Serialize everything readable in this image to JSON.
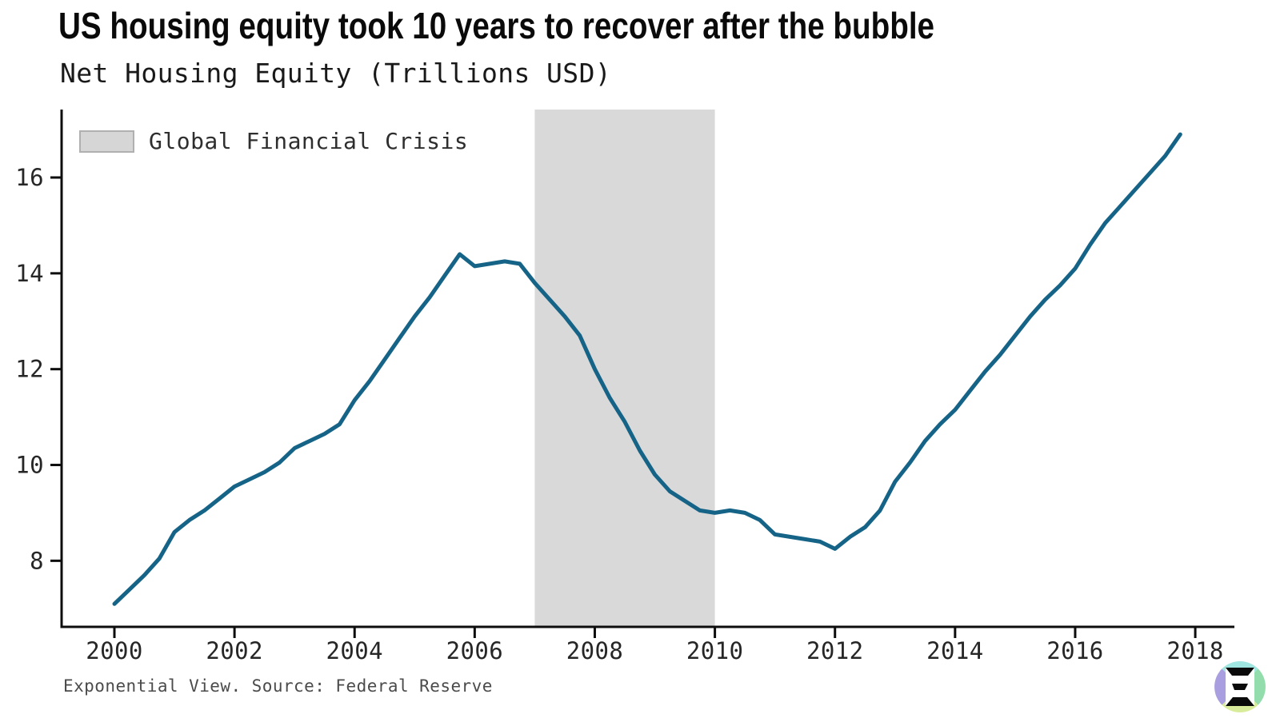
{
  "page": {
    "title": "US housing equity took 10 years to recover after the bubble",
    "subtitle": "Net Housing Equity (Trillions USD)",
    "footer": "Exponential View. Source: Federal Reserve"
  },
  "legend": {
    "label": "Global Financial Crisis",
    "swatch_color": "#d6d6d6"
  },
  "logo": {
    "name": "exponential-view-logo",
    "segment_colors": {
      "top": "#9fe5e0",
      "right": "#93dcab",
      "bottom": "#d9ec9c",
      "left": "#a99fe0"
    },
    "glyph": "three-bar-xi-monogram"
  },
  "chart_data": {
    "type": "line",
    "title": "US housing equity took 10 years to recover after the bubble",
    "subtitle": "Net Housing Equity (Trillions USD)",
    "xlabel": "",
    "ylabel": "Trillions USD",
    "grid": false,
    "x_ticks": [
      2000,
      2002,
      2004,
      2006,
      2008,
      2010,
      2012,
      2014,
      2016,
      2018
    ],
    "y_ticks": [
      8,
      10,
      12,
      14,
      16
    ],
    "xlim": [
      1999.1,
      2018.65
    ],
    "ylim": [
      6.6,
      17.4
    ],
    "shaded_region": {
      "label": "Global Financial Crisis",
      "from": 2007,
      "to": 2010,
      "color": "#d9d9d9"
    },
    "series": [
      {
        "name": "Net Housing Equity",
        "color": "#156386",
        "x_start": 2000,
        "x_step": 0.25,
        "x": [
          2000.0,
          2000.25,
          2000.5,
          2000.75,
          2001.0,
          2001.25,
          2001.5,
          2001.75,
          2002.0,
          2002.25,
          2002.5,
          2002.75,
          2003.0,
          2003.25,
          2003.5,
          2003.75,
          2004.0,
          2004.25,
          2004.5,
          2004.75,
          2005.0,
          2005.25,
          2005.5,
          2005.75,
          2006.0,
          2006.25,
          2006.5,
          2006.75,
          2007.0,
          2007.25,
          2007.5,
          2007.75,
          2008.0,
          2008.25,
          2008.5,
          2008.75,
          2009.0,
          2009.25,
          2009.5,
          2009.75,
          2010.0,
          2010.25,
          2010.5,
          2010.75,
          2011.0,
          2011.25,
          2011.5,
          2011.75,
          2012.0,
          2012.25,
          2012.5,
          2012.75,
          2013.0,
          2013.25,
          2013.5,
          2013.75,
          2014.0,
          2014.25,
          2014.5,
          2014.75,
          2015.0,
          2015.25,
          2015.5,
          2015.75,
          2016.0,
          2016.25,
          2016.5,
          2016.75,
          2017.0,
          2017.25,
          2017.5,
          2017.75
        ],
        "values": [
          7.1,
          7.4,
          7.7,
          8.05,
          8.6,
          8.85,
          9.05,
          9.3,
          9.55,
          9.7,
          9.85,
          10.05,
          10.35,
          10.5,
          10.65,
          10.85,
          11.35,
          11.75,
          12.2,
          12.65,
          13.1,
          13.5,
          13.95,
          14.4,
          14.15,
          14.2,
          14.25,
          14.2,
          13.8,
          13.45,
          13.1,
          12.7,
          12.0,
          11.4,
          10.9,
          10.3,
          9.8,
          9.45,
          9.25,
          9.05,
          9.0,
          9.05,
          9.0,
          8.85,
          8.55,
          8.5,
          8.45,
          8.4,
          8.25,
          8.5,
          8.7,
          9.05,
          9.65,
          10.05,
          10.5,
          10.85,
          11.15,
          11.55,
          11.95,
          12.3,
          12.7,
          13.1,
          13.45,
          13.75,
          14.1,
          14.6,
          15.05,
          15.4,
          15.75,
          16.1,
          16.45,
          16.9
        ]
      }
    ],
    "legend_position": "top-left",
    "footer": "Exponential View. Source: Federal Reserve"
  }
}
